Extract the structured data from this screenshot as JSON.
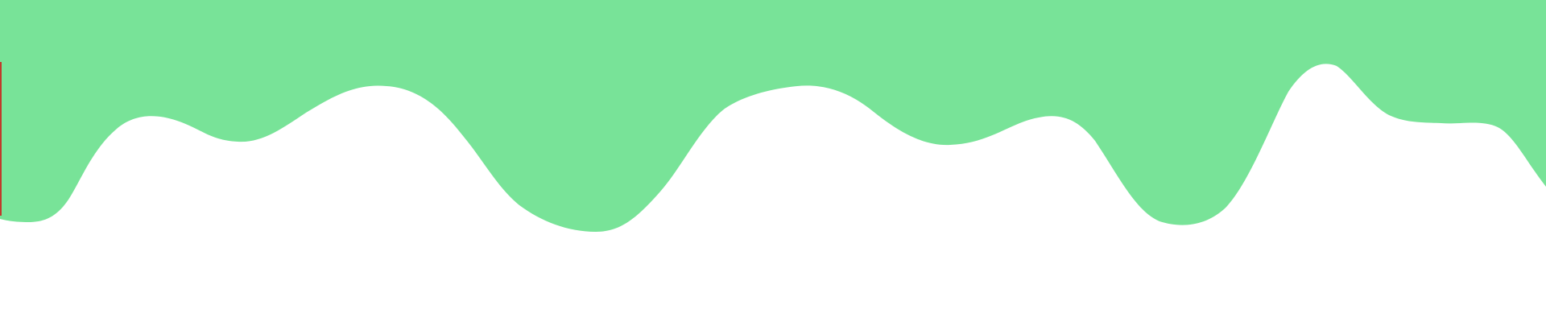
{
  "colors": {
    "background": "#ffffff",
    "drip_fill": "#78e398",
    "edge_accent": "#c0392b"
  },
  "shapes": {
    "drip_banner": "wavy-green-drip",
    "edge_marker": "thin-red-vertical-line"
  }
}
